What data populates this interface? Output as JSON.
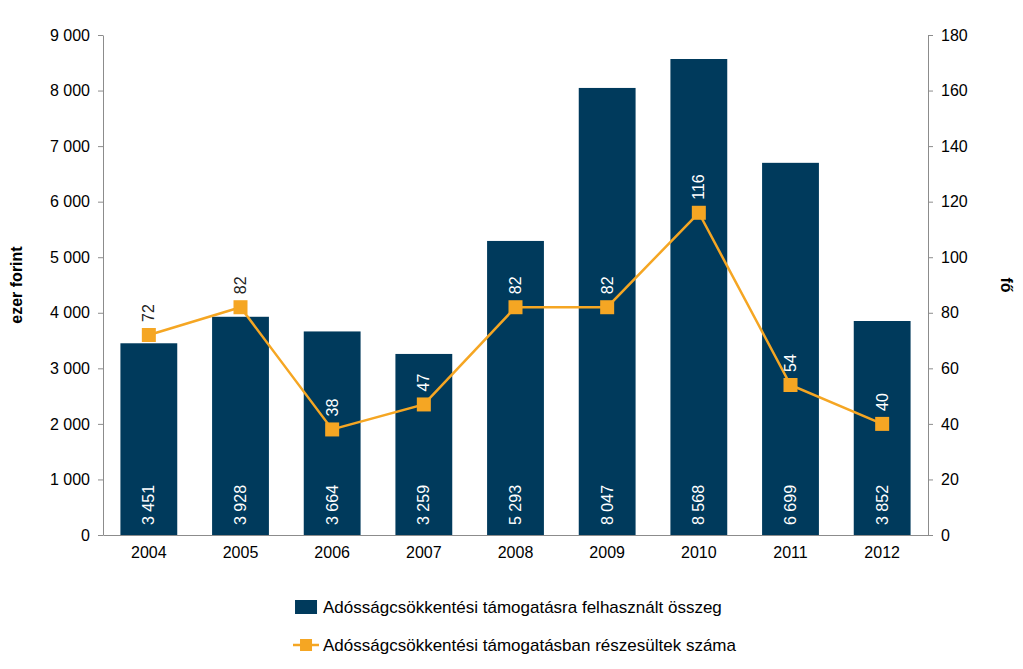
{
  "chart_data": {
    "type": "bar",
    "categories": [
      "2004",
      "2005",
      "2006",
      "2007",
      "2008",
      "2009",
      "2010",
      "2011",
      "2012"
    ],
    "series": [
      {
        "name": "Adósságcsökkentési támogatásra felhasznált összeg",
        "type": "bar",
        "color": "#003a5c",
        "values": [
          3451,
          3928,
          3664,
          3259,
          5293,
          8047,
          8568,
          6699,
          3852
        ],
        "value_labels": [
          "3 451",
          "3 928",
          "3 664",
          "3 259",
          "5 293",
          "8 047",
          "8 568",
          "6 699",
          "3 852"
        ]
      },
      {
        "name": "Adósságcsökkentési támogatásban részesültek száma",
        "type": "line",
        "axis": "y2",
        "color": "#f5a623",
        "marker": "square",
        "values": [
          72,
          82,
          38,
          47,
          82,
          82,
          116,
          54,
          40
        ]
      }
    ],
    "y_label": "ezer forint",
    "y2_label": "fő",
    "ylim": [
      0,
      9000
    ],
    "yticks": [
      0,
      {
        "value": 1000,
        "label": "1 000"
      },
      {
        "value": 2000,
        "label": "2 000"
      },
      {
        "value": 3000,
        "label": "3 000"
      },
      {
        "value": 4000,
        "label": "4 000"
      },
      {
        "value": 5000,
        "label": "5 000"
      },
      {
        "value": 6000,
        "label": "6 000"
      },
      {
        "value": 7000,
        "label": "7 000"
      },
      {
        "value": 8000,
        "label": "8 000"
      },
      {
        "value": 9000,
        "label": "9 000"
      }
    ],
    "y2lim": [
      0,
      180
    ],
    "y2ticks": [
      0,
      20,
      40,
      60,
      80,
      100,
      120,
      140,
      160,
      180
    ],
    "grid": false,
    "legend": "bottom",
    "data_labels": true
  }
}
